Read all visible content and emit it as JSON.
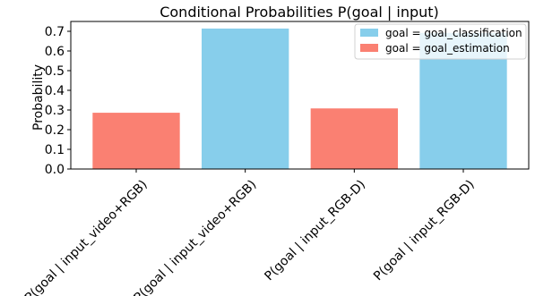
{
  "chart_data": {
    "type": "bar",
    "title": "Conditional Probabilities P(goal | input)",
    "xlabel": "",
    "ylabel": "Probability",
    "ylim": [
      0,
      0.75
    ],
    "yticks": [
      "0.0",
      "0.1",
      "0.2",
      "0.3",
      "0.4",
      "0.5",
      "0.6",
      "0.7"
    ],
    "grid": false,
    "legend_position": "top-right",
    "series_styles": [
      {
        "name": "goal = goal_classification",
        "color": "#87CEEB"
      },
      {
        "name": "goal = goal_estimation",
        "color": "#FA8072"
      }
    ],
    "bars": [
      {
        "label": "P(goal | input_video+RGB)",
        "value": 0.286,
        "series": 1
      },
      {
        "label": "P(goal | input_video+RGB)",
        "value": 0.714,
        "series": 0
      },
      {
        "label": "P(goal | input_RGB-D)",
        "value": 0.308,
        "series": 1
      },
      {
        "label": "P(goal | input_RGB-D)",
        "value": 0.692,
        "series": 0
      }
    ]
  }
}
